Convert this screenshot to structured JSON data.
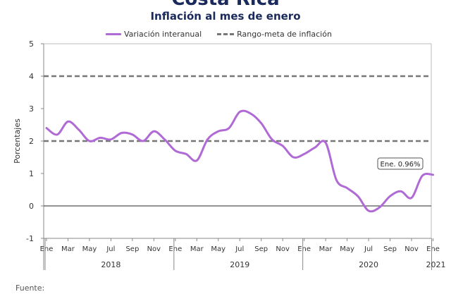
{
  "page": {
    "top_title": "Costa Rica",
    "subtitle": "Inflación al mes de enero",
    "source_label": "Fuente:"
  },
  "legend": {
    "series_label": "Variación interanual",
    "target_label": "Rango-meta de inflación"
  },
  "colors": {
    "series": "#b06ad6",
    "target": "#777777",
    "zero_line": "#555555",
    "annotation_border": "#555555"
  },
  "chart_data": {
    "type": "line",
    "ylabel": "Porcentajes",
    "ylim": [
      -1,
      5
    ],
    "yticks": [
      -1,
      0,
      1,
      2,
      3,
      4,
      5
    ],
    "grid": false,
    "legend_position": "top",
    "x_tick_labels": [
      "Ene",
      "Mar",
      "May",
      "Jul",
      "Sep",
      "Nov",
      "Ene",
      "Mar",
      "May",
      "Jul",
      "Sep",
      "Nov",
      "Ene",
      "Mar",
      "May",
      "Jul",
      "Sep",
      "Nov",
      "Ene"
    ],
    "year_labels": [
      "2018",
      "2019",
      "2020",
      "2021"
    ],
    "x": [
      "2018-01",
      "2018-02",
      "2018-03",
      "2018-04",
      "2018-05",
      "2018-06",
      "2018-07",
      "2018-08",
      "2018-09",
      "2018-10",
      "2018-11",
      "2018-12",
      "2019-01",
      "2019-02",
      "2019-03",
      "2019-04",
      "2019-05",
      "2019-06",
      "2019-07",
      "2019-08",
      "2019-09",
      "2019-10",
      "2019-11",
      "2019-12",
      "2020-01",
      "2020-02",
      "2020-03",
      "2020-04",
      "2020-05",
      "2020-06",
      "2020-07",
      "2020-08",
      "2020-09",
      "2020-10",
      "2020-11",
      "2020-12",
      "2021-01"
    ],
    "series": [
      {
        "name": "Variación interanual",
        "values": [
          2.4,
          2.2,
          2.6,
          2.35,
          2.0,
          2.1,
          2.05,
          2.25,
          2.2,
          2.0,
          2.3,
          2.05,
          1.7,
          1.6,
          1.4,
          2.05,
          2.3,
          2.4,
          2.9,
          2.85,
          2.55,
          2.05,
          1.85,
          1.5,
          1.6,
          1.8,
          1.95,
          0.8,
          0.55,
          0.3,
          -0.15,
          -0.05,
          0.3,
          0.45,
          0.25,
          0.93,
          0.96
        ]
      }
    ],
    "target_range": [
      2,
      4
    ],
    "zero_line": 0,
    "annotation": {
      "text": "Ene. 0.96%",
      "x": "2021-01",
      "y": 0.96
    }
  }
}
